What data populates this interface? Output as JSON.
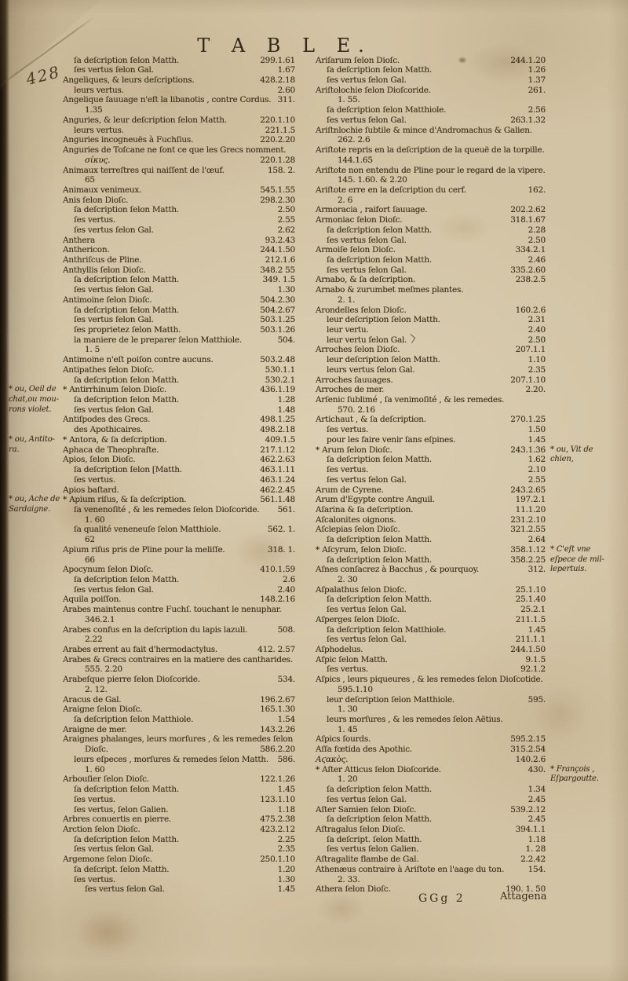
{
  "page": {
    "header_title": "T A B L E.",
    "page_number": "428",
    "signature": "GGg  2",
    "catchword": "Attagena"
  },
  "colors": {
    "paper": "#d2c3a4",
    "ink": "#3a2d1b",
    "binding_edge": "#150f07"
  },
  "left_column": {
    "lines": [
      {
        "i": 1,
        "t": "ſa deſcription ſelon Matth.",
        "r": "299.1.61"
      },
      {
        "i": 1,
        "t": "ſes vertus ſelon Gal.",
        "r": "1.67"
      },
      {
        "i": 0,
        "t": "Angeliques, & leurs deſcriptions.",
        "r": "428.2.18"
      },
      {
        "i": 1,
        "t": "leurs vertus.",
        "r": "2.60"
      },
      {
        "i": 0,
        "t": "Angelique ſauuage n'eſt la libanotis , contre Cordus.",
        "r": "311."
      },
      {
        "i": 2,
        "t": "1.35",
        "r": ""
      },
      {
        "i": 0,
        "t": "Anguries, & leur deſcription ſelon Matth.",
        "r": "220.1.10"
      },
      {
        "i": 1,
        "t": "leurs vertus.",
        "r": "221.1.5"
      },
      {
        "i": 0,
        "t": "Anguries incogneuës à Fuchſius.",
        "r": "220.2.20"
      },
      {
        "i": 0,
        "t": "Anguries de Toſcane ne ſont ce que les Grecs nomment.",
        "r": ""
      },
      {
        "i": 2,
        "t": "σίκυς.",
        "r": "220.1.28",
        "g": true
      },
      {
        "i": 0,
        "t": "Animaux terreſtres qui naiſſent de l'œuf.",
        "r": "158. 2."
      },
      {
        "i": 2,
        "t": "65",
        "r": ""
      },
      {
        "i": 0,
        "t": "Animaux venimeux.",
        "r": "545.1.55"
      },
      {
        "i": 0,
        "t": "Anis ſelon Dioſc.",
        "r": "298.2.30"
      },
      {
        "i": 1,
        "t": "ſa deſcription ſelon Matth.",
        "r": "2.50"
      },
      {
        "i": 1,
        "t": "ſes vertus.",
        "r": "2.55"
      },
      {
        "i": 1,
        "t": "ſes vertus ſelon Gal.",
        "r": "2.62"
      },
      {
        "i": 0,
        "t": "Anthera",
        "r": "93.2.43"
      },
      {
        "i": 0,
        "t": "Anthericon.",
        "r": "244.1.50"
      },
      {
        "i": 0,
        "t": "Anthriſcus de Pline.",
        "r": "212.1.6"
      },
      {
        "i": 0,
        "t": "Anthyllis ſelon Dioſc.",
        "r": "348.2 55"
      },
      {
        "i": 1,
        "t": "ſa deſcription ſelon Matth.",
        "r": "349. 1.5"
      },
      {
        "i": 1,
        "t": "ſes vertus ſelon Gal.",
        "r": "1.30"
      },
      {
        "i": 0,
        "t": "Antimoine ſelon Dioſc.",
        "r": "504.2.30"
      },
      {
        "i": 1,
        "t": "ſa deſcription ſelon Matth.",
        "r": "504.2.67"
      },
      {
        "i": 1,
        "t": "ſes vertus ſelon Gal.",
        "r": "503.1.25"
      },
      {
        "i": 1,
        "t": "ſes proprietez ſelon Matth.",
        "r": "503.1.26"
      },
      {
        "i": 1,
        "t": "la maniere de le preparer ſelon Matthiole.",
        "r": "504."
      },
      {
        "i": 2,
        "t": "1. 5",
        "r": ""
      },
      {
        "i": 0,
        "t": "Antimoine n'eſt poiſon contre aucuns.",
        "r": "503.2.48"
      },
      {
        "i": 0,
        "t": "Antipathes ſelon Dioſc.",
        "r": "530.1.1"
      },
      {
        "i": 1,
        "t": "ſa deſcription ſelon Matth.",
        "r": "530.2.1"
      },
      {
        "i": 0,
        "t": "* Antirrhinum ſelon Dioſc.",
        "r": "436.1.19"
      },
      {
        "i": 1,
        "t": "ſa deſcription ſelon Matth.",
        "r": "1.28"
      },
      {
        "i": 1,
        "t": "ſes vertus ſelon Gal.",
        "r": "1.48"
      },
      {
        "i": 0,
        "t": "Antiſpodes des Grecs.",
        "r": "498.1.25"
      },
      {
        "i": 1,
        "t": "des Apothicaires.",
        "r": "498.2.18"
      },
      {
        "i": 0,
        "t": "* Antora, & ſa deſcription.",
        "r": "409.1.5"
      },
      {
        "i": 0,
        "t": "Aphaca de Theophraſte.",
        "r": "217.1.12"
      },
      {
        "i": 0,
        "t": "Apios, ſelon Dioſc.",
        "r": "462.2.63"
      },
      {
        "i": 1,
        "t": "ſa deſcription ſelon [Matth.",
        "r": "463.1.11"
      },
      {
        "i": 1,
        "t": "ſes vertus.",
        "r": "463.1.24"
      },
      {
        "i": 0,
        "t": "Apios baſtard.",
        "r": "462.2.45"
      },
      {
        "i": 0,
        "t": "* Apium riſus, & ſa deſcription.",
        "r": "561.1.48"
      },
      {
        "i": 1,
        "t": "ſa venenoſité , & les remedes ſelon Dioſcoride.",
        "r": "561."
      },
      {
        "i": 2,
        "t": "1. 60",
        "r": ""
      },
      {
        "i": 1,
        "t": "ſa qualité veneneuſe ſelon Matthiole.",
        "r": "562. 1."
      },
      {
        "i": 2,
        "t": "62",
        "r": ""
      },
      {
        "i": 0,
        "t": "Apium riſus pris de Pline pour la meliſſe.",
        "r": "318. 1."
      },
      {
        "i": 2,
        "t": "66",
        "r": ""
      },
      {
        "i": 0,
        "t": "Apocynum ſelon Dioſc.",
        "r": "410.1.59"
      },
      {
        "i": 1,
        "t": "ſa deſcription ſelon Matth.",
        "r": "2.6"
      },
      {
        "i": 1,
        "t": "ſes vertus ſelon Gal.",
        "r": "2.40"
      },
      {
        "i": 0,
        "t": "Aquila poiſſon.",
        "r": "148.2.16"
      },
      {
        "i": 0,
        "t": "Arabes maintenus contre Fuchſ. touchant le nenuphar.",
        "r": ""
      },
      {
        "i": 2,
        "t": "346.2.1",
        "r": ""
      },
      {
        "i": 0,
        "t": "Arabes confus en la deſcription du lapis lazuli.",
        "r": "508."
      },
      {
        "i": 2,
        "t": "2.22",
        "r": ""
      },
      {
        "i": 0,
        "t": "Arabes errent au fait d'hermodactylus.",
        "r": "412. 2.57"
      },
      {
        "i": 0,
        "t": "Arabes & Grecs contraires en la matiere des cantharides.",
        "r": ""
      },
      {
        "i": 2,
        "t": "555. 2.20",
        "r": ""
      },
      {
        "i": 0,
        "t": "Arabeſque pierre ſelon Dioſcoride.",
        "r": "534."
      },
      {
        "i": 2,
        "t": "2. 12.",
        "r": ""
      },
      {
        "i": 0,
        "t": "Aracus de Gal.",
        "r": "196.2.67"
      },
      {
        "i": 0,
        "t": "Araigne ſelon Dioſc.",
        "r": "165.1.30"
      },
      {
        "i": 1,
        "t": "ſa deſcription ſelon Matthiole.",
        "r": "1.54"
      },
      {
        "i": 0,
        "t": "Araigne de mer.",
        "r": "143.2.26"
      },
      {
        "i": 0,
        "t": "Araignes phalanges, leurs morſures , & les remedes ſelon",
        "r": ""
      },
      {
        "i": 2,
        "t": "Dioſc.",
        "r": "586.2.20"
      },
      {
        "i": 1,
        "t": "leurs eſpeces , morſures & remedes ſelon Matth.",
        "r": "586."
      },
      {
        "i": 2,
        "t": "1. 60",
        "r": ""
      },
      {
        "i": 0,
        "t": "Arbouſier ſelon Dioſc.",
        "r": "122.1.26"
      },
      {
        "i": 1,
        "t": "ſa deſcription ſelon Matth.",
        "r": "1.45"
      },
      {
        "i": 1,
        "t": "ſes vertus.",
        "r": "123.1.10"
      },
      {
        "i": 1,
        "t": "ſes vertus, ſelon Galien.",
        "r": "1.18"
      },
      {
        "i": 0,
        "t": "Arbres conuertis en pierre.",
        "r": "475.2.38"
      },
      {
        "i": 0,
        "t": "Arction ſelon Dioſc.",
        "r": "423.2.12"
      },
      {
        "i": 1,
        "t": "ſa deſcription ſelon Matth.",
        "r": "2.25"
      },
      {
        "i": 1,
        "t": "ſes vertus ſelon Gal.",
        "r": "2.35"
      },
      {
        "i": 0,
        "t": "Argemone ſelon Dioſc.",
        "r": "250.1.10"
      },
      {
        "i": 1,
        "t": "ſa deſcript. ſelon Matth.",
        "r": "1.20"
      },
      {
        "i": 1,
        "t": "ſes vertus.",
        "r": "1.30"
      },
      {
        "i": 2,
        "t": "ſes vertus ſelon Gal.",
        "r": "1.45"
      }
    ]
  },
  "right_column": {
    "lines": [
      {
        "i": 0,
        "t": "Ariſarum ſelon Dioſc.",
        "r": "244.1.20"
      },
      {
        "i": 1,
        "t": "ſa deſcription ſelon Matth.",
        "r": "1.26"
      },
      {
        "i": 1,
        "t": "ſes vertus ſelon Gal.",
        "r": "1.37"
      },
      {
        "i": 0,
        "t": "Ariſtolochie ſelon Dioſcoride.",
        "r": "261."
      },
      {
        "i": 2,
        "t": "1. 55.",
        "r": ""
      },
      {
        "i": 1,
        "t": "ſa deſcription ſelon Matthiole.",
        "r": "2.56"
      },
      {
        "i": 1,
        "t": "ſes vertus ſelon Gal.",
        "r": "263.1.32"
      },
      {
        "i": 0,
        "t": "Ariſtnlochie ſubtile & mince d'Andromachus & Galien.",
        "r": ""
      },
      {
        "i": 2,
        "t": "262. 2.6",
        "r": ""
      },
      {
        "i": 0,
        "t": "Ariſtote repris en la deſcription de la queuë de la torpille.",
        "r": ""
      },
      {
        "i": 2,
        "t": "144.1.65",
        "r": ""
      },
      {
        "i": 0,
        "t": "Ariſtote non entendu de Pline pour le regard de la vipere.",
        "r": ""
      },
      {
        "i": 2,
        "t": "145. 1.60. & 2.20",
        "r": ""
      },
      {
        "i": 0,
        "t": "Ariſtote erre en la deſcription du cerf.",
        "r": "162."
      },
      {
        "i": 2,
        "t": "2. 6",
        "r": ""
      },
      {
        "i": 0,
        "t": "Armoracia , raifort ſauuage.",
        "r": "202.2.62"
      },
      {
        "i": 0,
        "t": "Armoniac ſelon Dioſc.",
        "r": "318.1.67"
      },
      {
        "i": 1,
        "t": "ſa deſcription ſelon Matth.",
        "r": "2.28"
      },
      {
        "i": 1,
        "t": "ſes vertus ſelon Gal.",
        "r": "2.50"
      },
      {
        "i": 0,
        "t": "Armoiſe ſelon Dioſc.",
        "r": "334.2.1"
      },
      {
        "i": 1,
        "t": "ſa deſcription ſelon Matth.",
        "r": "2.46"
      },
      {
        "i": 1,
        "t": "ſes vertus ſelon Gal.",
        "r": "335.2.60"
      },
      {
        "i": 0,
        "t": "Arnabo, & ſa deſcription.",
        "r": "238.2.5"
      },
      {
        "i": 0,
        "t": "Arnabo & zurumbet meſmes plantes.",
        "r": ""
      },
      {
        "i": 2,
        "t": "2. 1.",
        "r": ""
      },
      {
        "i": 0,
        "t": "Arondelles ſelon Dioſc.",
        "r": "160.2.6"
      },
      {
        "i": 1,
        "t": "leur deſcription ſelon Matth.",
        "r": "2.31"
      },
      {
        "i": 1,
        "t": "leur vertu.",
        "r": "2.40"
      },
      {
        "i": 1,
        "t": "leur vertu ſelon Gal.",
        "r": "2.50"
      },
      {
        "i": 0,
        "t": "Arroches ſelon Dioſc.",
        "r": "207.1.1"
      },
      {
        "i": 1,
        "t": "leur deſcription ſelon Matth.",
        "r": "1.10"
      },
      {
        "i": 1,
        "t": "leurs vertus ſelon Gal.",
        "r": "2.35"
      },
      {
        "i": 0,
        "t": "Arroches ſauuages.",
        "r": "207.1.10"
      },
      {
        "i": 0,
        "t": "Arroches de mer.",
        "r": "2.20."
      },
      {
        "i": 0,
        "t": "Arſenic ſublimé , ſa venimoſité , & les remedes.",
        "r": ""
      },
      {
        "i": 2,
        "t": "570. 2.16",
        "r": ""
      },
      {
        "i": 0,
        "t": "Artichaut , & ſa deſcription.",
        "r": "270.1.25"
      },
      {
        "i": 1,
        "t": "ſes vertus.",
        "r": "1.50"
      },
      {
        "i": 1,
        "t": "pour les faire venir ſans eſpines.",
        "r": "1.45"
      },
      {
        "i": 0,
        "t": "* Arum ſelon Dioſc.",
        "r": "243.1.36"
      },
      {
        "i": 1,
        "t": "ſa deſcription ſelon Matth.",
        "r": "1.62"
      },
      {
        "i": 1,
        "t": "ſes vertus.",
        "r": "2.10"
      },
      {
        "i": 1,
        "t": "ſes vertus ſelon Gal.",
        "r": "2.55"
      },
      {
        "i": 0,
        "t": "Arum de Cyrene.",
        "r": "243.2.65"
      },
      {
        "i": 0,
        "t": "Arum d'Egypte contre Anguil.",
        "r": "197.2.1"
      },
      {
        "i": 0,
        "t": "Aſarina & ſa deſcription.",
        "r": "11.1.20"
      },
      {
        "i": 0,
        "t": "Aſcalonites oignons.",
        "r": "231.2.10"
      },
      {
        "i": 0,
        "t": "Aſclepias ſelon Dioſc.",
        "r": "321.2.55"
      },
      {
        "i": 1,
        "t": "ſa deſcription ſelon Matth.",
        "r": "2.64"
      },
      {
        "i": 0,
        "t": "* Aſcyrum, ſelon Dioſc.",
        "r": "358.1.12"
      },
      {
        "i": 1,
        "t": "ſa deſcription ſelon Matth.",
        "r": "358.2.25"
      },
      {
        "i": 0,
        "t": "Aſnes conſacrez à Bacchus , & pourquoy.",
        "r": "312."
      },
      {
        "i": 2,
        "t": "2. 30",
        "r": ""
      },
      {
        "i": 0,
        "t": "Aſpalathus ſelon Dioſc.",
        "r": "25.1.10"
      },
      {
        "i": 1,
        "t": "ſa deſcription ſelon Matth.",
        "r": "25.1.40"
      },
      {
        "i": 1,
        "t": "ſes vertus ſelon Gal.",
        "r": "25.2.1"
      },
      {
        "i": 0,
        "t": "Aſperges ſelon Dioſc.",
        "r": "211.1.5"
      },
      {
        "i": 1,
        "t": "ſa deſcription ſelon Matthiole.",
        "r": "1.45"
      },
      {
        "i": 1,
        "t": "ſes vertus ſelon Gal.",
        "r": "211.1.1"
      },
      {
        "i": 0,
        "t": "Aſphodelus.",
        "r": "244.1.50"
      },
      {
        "i": 0,
        "t": "Aſpic ſelon Matth.",
        "r": "9.1.5"
      },
      {
        "i": 1,
        "t": "ſes vertus.",
        "r": "92.1.2"
      },
      {
        "i": 0,
        "t": "Aſpics , leurs piqueures , & les remedes ſelon Dioſcotide.",
        "r": ""
      },
      {
        "i": 2,
        "t": "595.1.10",
        "r": ""
      },
      {
        "i": 1,
        "t": "leur deſcription ſelon Matthiole.",
        "r": "595."
      },
      {
        "i": 2,
        "t": "1. 30",
        "r": ""
      },
      {
        "i": 1,
        "t": "leurs morſures , & les remedes ſelon Aëtius.",
        "r": ""
      },
      {
        "i": 2,
        "t": "1. 45",
        "r": ""
      },
      {
        "i": 0,
        "t": "Aſpics ſourds.",
        "r": "595.2.15"
      },
      {
        "i": 0,
        "t": "Aſſa fœtida des Apothic.",
        "r": "315.2.54"
      },
      {
        "i": 0,
        "t": "Αϛακὸς.",
        "r": "140.2.6",
        "g": true
      },
      {
        "i": 0,
        "t": "* Aſter Atticus ſelon Dioſcoride.",
        "r": "430."
      },
      {
        "i": 2,
        "t": "1. 20",
        "r": ""
      },
      {
        "i": 1,
        "t": "ſa deſcription ſelon Matth.",
        "r": "1.34"
      },
      {
        "i": 1,
        "t": "ſes vertus ſelon Gal.",
        "r": "2.45"
      },
      {
        "i": 0,
        "t": "Aſter Samien ſelon Dioſc.",
        "r": "539.2.12"
      },
      {
        "i": 1,
        "t": "ſa deſcription ſelon Matth.",
        "r": "2.45"
      },
      {
        "i": 0,
        "t": "Aſtragalus ſelon Dioſc.",
        "r": "394.1.1"
      },
      {
        "i": 1,
        "t": "ſa deſcript. ſelon Matth.",
        "r": "1.18"
      },
      {
        "i": 1,
        "t": "ſes vertus ſelon Galien.",
        "r": "1. 28"
      },
      {
        "i": 0,
        "t": "Aſtragalite flambe de Gal.",
        "r": "2.2.42"
      },
      {
        "i": 0,
        "t": "Athenæus contraire à Ariſtote en l'aage du ton.",
        "r": "154."
      },
      {
        "i": 2,
        "t": "2. 33.",
        "r": ""
      },
      {
        "i": 0,
        "t": "Athera ſelon Dioſc.",
        "r": "190. 1. 50"
      }
    ]
  },
  "margin_notes_left": [
    {
      "line": 33,
      "lines": [
        "* ou, Oeil de",
        "chat,ou mou-",
        "rons violet."
      ]
    },
    {
      "line": 38,
      "lines": [
        "* ou, Antito-",
        "ra."
      ]
    },
    {
      "line": 44,
      "lines": [
        "* ou, Ache de",
        "Sardaigne."
      ]
    }
  ],
  "margin_notes_right": [
    {
      "line": 39,
      "lines": [
        "* ou, Vit de",
        "chien,"
      ]
    },
    {
      "line": 49,
      "lines": [
        "* C'eſt vne",
        "eſpece de mil-",
        "lepertuis."
      ]
    },
    {
      "line": 71,
      "lines": [
        "* François ,",
        "Eſpargoutte."
      ]
    }
  ]
}
